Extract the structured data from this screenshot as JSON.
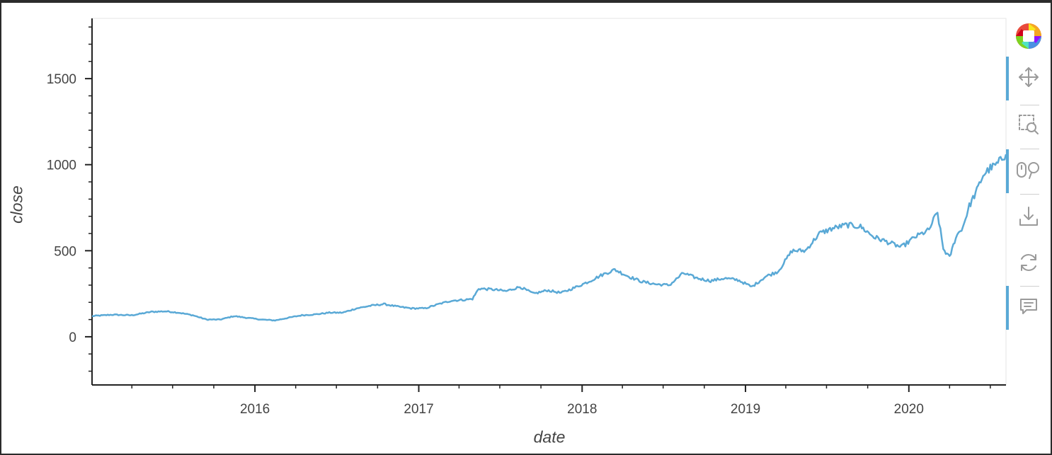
{
  "chart_data": {
    "type": "line",
    "title": "",
    "xlabel": "date",
    "ylabel": "close",
    "x_tick_labels": [
      "2016",
      "2017",
      "2018",
      "2019",
      "2020"
    ],
    "y_tick_labels": [
      "0",
      "500",
      "1000",
      "1500"
    ],
    "xlim": [
      "2015-01-02",
      "2020-08-05"
    ],
    "ylim": [
      -280,
      1850
    ],
    "grid": false,
    "legend": false,
    "series": [
      {
        "color": "#5aa9d6",
        "x": [
          "2015-01-02",
          "2015-02-15",
          "2015-04-01",
          "2015-05-15",
          "2015-06-15",
          "2015-07-15",
          "2015-08-15",
          "2015-09-15",
          "2015-10-15",
          "2015-11-15",
          "2015-12-15",
          "2016-01-15",
          "2016-02-15",
          "2016-03-15",
          "2016-04-15",
          "2016-05-15",
          "2016-06-15",
          "2016-07-15",
          "2016-08-15",
          "2016-09-15",
          "2016-10-15",
          "2016-11-15",
          "2016-12-15",
          "2017-01-15",
          "2017-02-15",
          "2017-03-15",
          "2017-04-15",
          "2017-05-01",
          "2017-05-15",
          "2017-06-15",
          "2017-07-15",
          "2017-08-15",
          "2017-09-15",
          "2017-10-15",
          "2017-11-15",
          "2017-12-15",
          "2018-01-15",
          "2018-02-15",
          "2018-03-15",
          "2018-04-15",
          "2018-05-15",
          "2018-06-15",
          "2018-07-15",
          "2018-08-15",
          "2018-09-15",
          "2018-10-15",
          "2018-11-15",
          "2018-12-15",
          "2019-01-15",
          "2019-02-15",
          "2019-03-15",
          "2019-04-15",
          "2019-05-15",
          "2019-06-15",
          "2019-07-15",
          "2019-08-15",
          "2019-09-15",
          "2019-10-15",
          "2019-11-15",
          "2019-12-15",
          "2020-01-15",
          "2020-02-15",
          "2020-02-25",
          "2020-03-05",
          "2020-03-18",
          "2020-04-01",
          "2020-04-15",
          "2020-05-01",
          "2020-05-15",
          "2020-06-01",
          "2020-06-15",
          "2020-07-01",
          "2020-07-15",
          "2020-08-05"
        ],
        "y": [
          120,
          128,
          125,
          145,
          148,
          140,
          125,
          100,
          100,
          120,
          110,
          100,
          95,
          110,
          125,
          130,
          140,
          140,
          165,
          180,
          190,
          175,
          165,
          165,
          190,
          210,
          215,
          220,
          280,
          275,
          265,
          290,
          250,
          270,
          255,
          285,
          320,
          360,
          390,
          350,
          320,
          305,
          300,
          370,
          340,
          325,
          340,
          330,
          290,
          350,
          380,
          500,
          500,
          600,
          630,
          650,
          640,
          580,
          550,
          520,
          580,
          620,
          680,
          720,
          510,
          460,
          580,
          640,
          760,
          850,
          940,
          980,
          1000,
          1060
        ]
      }
    ]
  },
  "toolbar": {
    "logo_icon": "bokeh-logo-icon",
    "items": [
      {
        "icon": "pan-icon",
        "active": true
      },
      {
        "icon": "box-zoom-icon",
        "active": false
      },
      {
        "icon": "wheel-zoom-icon",
        "active": true
      },
      {
        "icon": "save-icon",
        "active": false
      },
      {
        "icon": "reset-icon",
        "active": false
      },
      {
        "icon": "hover-icon",
        "active": true
      }
    ]
  }
}
